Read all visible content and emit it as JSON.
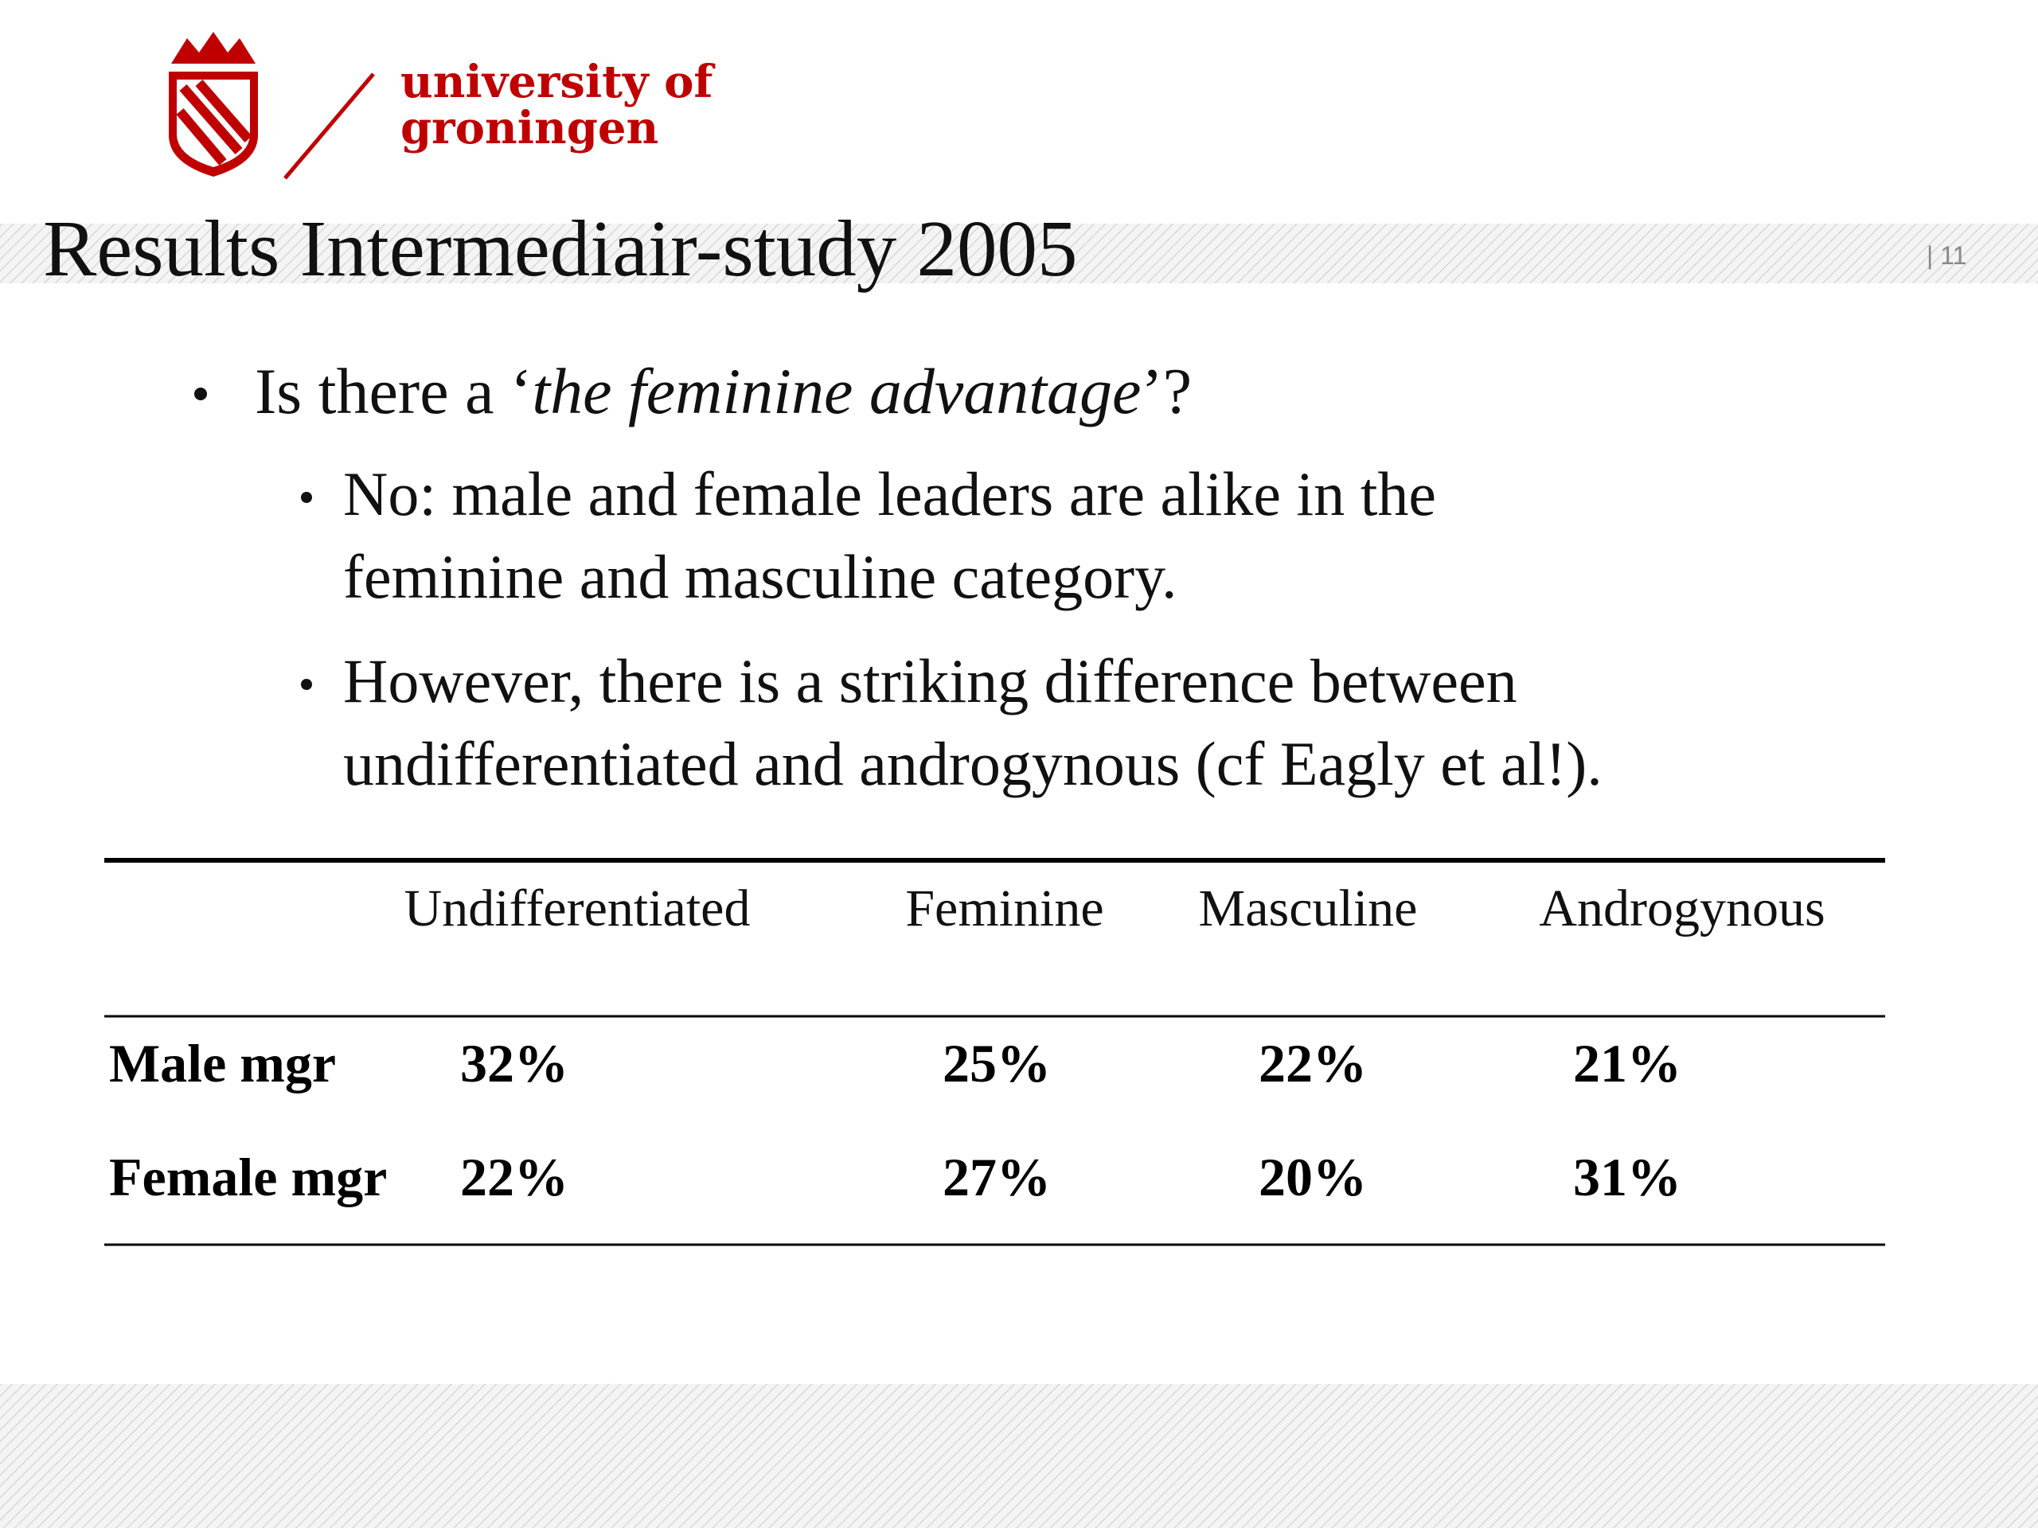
{
  "header": {
    "brand_line1": "university of",
    "brand_line2": "groningen",
    "title": "Results Intermediair-study 2005",
    "page_number": "| 11"
  },
  "bullets": [
    {
      "parts": [
        "Is there a ‘",
        "the feminine advantage",
        "’?"
      ],
      "sub": [
        {
          "lines": [
            "No: male and female leaders are alike in the",
            "feminine and masculine category."
          ]
        },
        {
          "lines": [
            "However, there is a striking difference between",
            "undifferentiated and androgynous (cf Eagly et al!)."
          ]
        }
      ]
    }
  ],
  "table": {
    "columns": [
      "Undifferentiated",
      "Feminine",
      "Masculine",
      "Androgynous"
    ],
    "rows": [
      {
        "label": "Male mgr",
        "values": [
          "32%",
          "25%",
          "22%",
          "21%"
        ]
      },
      {
        "label": "Female mgr",
        "values": [
          "22%",
          "27%",
          "20%",
          "31%"
        ]
      }
    ]
  }
}
